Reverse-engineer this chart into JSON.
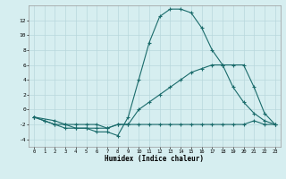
{
  "xlabel": "Humidex (Indice chaleur)",
  "background_color": "#d6eef0",
  "grid_color": "#b8d8dc",
  "line_color": "#1a6b6b",
  "x_ticks": [
    0,
    1,
    2,
    3,
    4,
    5,
    6,
    7,
    8,
    9,
    10,
    11,
    12,
    13,
    14,
    15,
    16,
    17,
    18,
    19,
    20,
    21,
    22,
    23
  ],
  "series1_x": [
    0,
    1,
    2,
    3,
    4,
    5,
    6,
    7,
    8,
    9,
    10,
    11,
    12,
    13,
    14,
    15,
    16,
    17,
    18,
    19,
    20,
    21,
    22,
    23
  ],
  "series1_y": [
    -1,
    -1.5,
    -2,
    -2.5,
    -2.5,
    -2.5,
    -3,
    -3,
    -3.5,
    -1,
    4,
    9,
    12.5,
    13.5,
    13.5,
    13,
    11,
    8,
    6,
    3,
    1,
    -0.5,
    -1.5,
    -2
  ],
  "series2_x": [
    0,
    1,
    2,
    3,
    4,
    5,
    6,
    7,
    8,
    9,
    10,
    11,
    12,
    13,
    14,
    15,
    16,
    17,
    18,
    19,
    20,
    21,
    22,
    23
  ],
  "series2_y": [
    -1,
    -1.5,
    -2,
    -2,
    -2.5,
    -2.5,
    -2.5,
    -2.5,
    -2,
    -2,
    -2,
    -2,
    -2,
    -2,
    -2,
    -2,
    -2,
    -2,
    -2,
    -2,
    -2,
    -1.5,
    -2,
    -2
  ],
  "series3_x": [
    0,
    2,
    3,
    4,
    5,
    6,
    7,
    8,
    9,
    10,
    11,
    12,
    13,
    14,
    15,
    16,
    17,
    18,
    19,
    20,
    21,
    22,
    23
  ],
  "series3_y": [
    -1,
    -1.5,
    -2,
    -2,
    -2,
    -2,
    -2.5,
    -2,
    -2,
    0,
    1,
    2,
    3,
    4,
    5,
    5.5,
    6,
    6,
    6,
    6,
    3,
    -0.5,
    -2
  ],
  "ylim": [
    -5,
    14
  ],
  "xlim": [
    -0.5,
    23.5
  ],
  "yticks": [
    -4,
    -2,
    0,
    2,
    4,
    6,
    8,
    10,
    12
  ]
}
